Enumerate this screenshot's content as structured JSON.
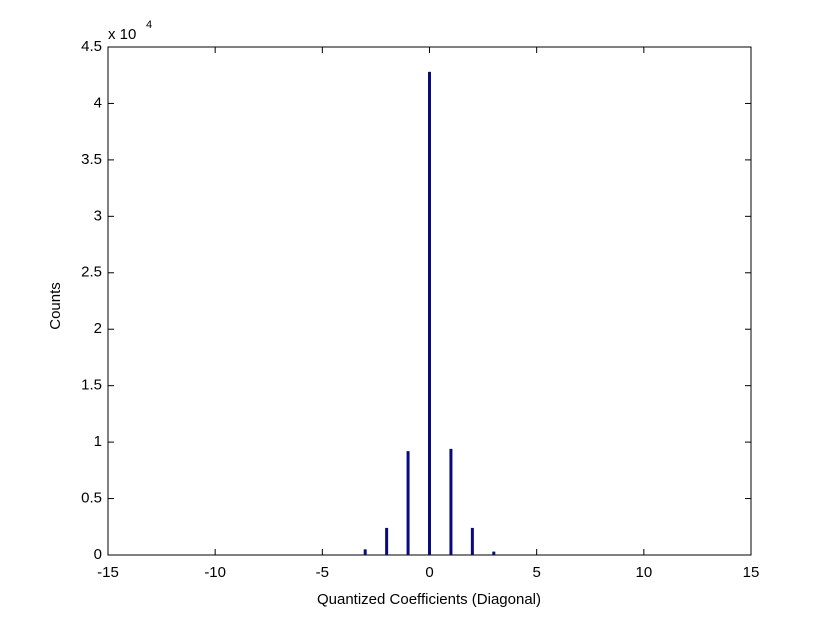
{
  "chart_data": {
    "type": "bar",
    "xlabel": "Quantized Coefficients (Diagonal)",
    "ylabel": "Counts",
    "y_scale_label": {
      "base": "x 10",
      "exponent": "4"
    },
    "x": [
      -3,
      -2,
      -1,
      0,
      1,
      2,
      3
    ],
    "values": [
      0.05,
      0.24,
      0.92,
      4.28,
      0.94,
      0.24,
      0.03
    ],
    "color": "#0a0a80",
    "xlim": [
      -15,
      15
    ],
    "xticks": [
      -15,
      -10,
      -5,
      0,
      5,
      10,
      15
    ],
    "ylim": [
      0,
      4.5
    ],
    "yticks": [
      0,
      0.5,
      1,
      1.5,
      2,
      2.5,
      3,
      3.5,
      4,
      4.5
    ],
    "grid": false
  }
}
